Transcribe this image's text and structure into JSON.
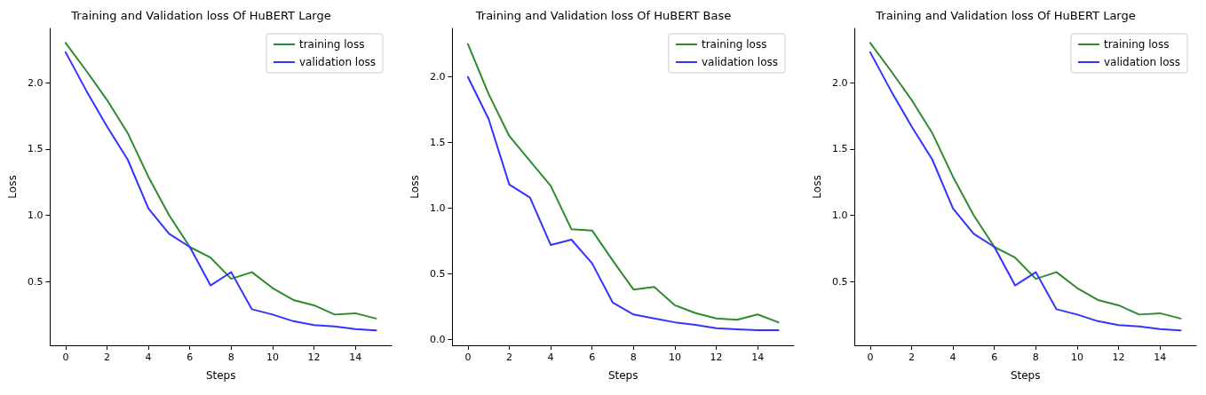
{
  "chart_data": [
    {
      "type": "line",
      "title": "Training and Validation loss Of HuBERT Large",
      "xlabel": "Steps",
      "ylabel": "Loss",
      "x": [
        0,
        1,
        2,
        3,
        4,
        5,
        6,
        7,
        8,
        9,
        10,
        11,
        12,
        13,
        14,
        15
      ],
      "xlim": [
        -0.75,
        15.75
      ],
      "xticks": [
        0,
        2,
        4,
        6,
        8,
        10,
        12,
        14
      ],
      "ylim": [
        0.018,
        2.41
      ],
      "yticks": [
        {
          "value": 0.5,
          "label": "0.5"
        },
        {
          "value": 1,
          "label": "1.0"
        },
        {
          "value": 1.5,
          "label": "1.5"
        },
        {
          "value": 2,
          "label": "2.0"
        }
      ],
      "grid": false,
      "legend": "top right",
      "marker": "none",
      "line_style": "solid",
      "series": [
        {
          "name": "training loss",
          "color": "#2e8b2e",
          "values": [
            2.3,
            2.09,
            1.87,
            1.62,
            1.29,
            1.0,
            0.76,
            0.68,
            0.52,
            0.57,
            0.45,
            0.36,
            0.32,
            0.25,
            0.26,
            0.22
          ]
        },
        {
          "name": "validation loss",
          "color": "#3333ff",
          "values": [
            2.23,
            1.94,
            1.67,
            1.42,
            1.05,
            0.86,
            0.76,
            0.47,
            0.57,
            0.29,
            0.25,
            0.2,
            0.17,
            0.16,
            0.14,
            0.13
          ]
        }
      ]
    },
    {
      "type": "line",
      "title": "Training and Validation loss Of HuBERT Base",
      "xlabel": "Steps",
      "ylabel": "Loss",
      "x": [
        0,
        1,
        2,
        3,
        4,
        5,
        6,
        7,
        8,
        9,
        10,
        11,
        12,
        13,
        14,
        15
      ],
      "xlim": [
        -0.75,
        15.75
      ],
      "xticks": [
        0,
        2,
        4,
        6,
        8,
        10,
        12,
        14
      ],
      "ylim": [
        -0.045,
        2.37
      ],
      "yticks": [
        {
          "value": 0,
          "label": "0.0"
        },
        {
          "value": 0.5,
          "label": "0.5"
        },
        {
          "value": 1,
          "label": "1.0"
        },
        {
          "value": 1.5,
          "label": "1.5"
        },
        {
          "value": 2,
          "label": "2.0"
        }
      ],
      "grid": false,
      "legend": "top right",
      "marker": "none",
      "line_style": "solid",
      "series": [
        {
          "name": "training loss",
          "color": "#2e8b2e",
          "values": [
            2.25,
            1.87,
            1.55,
            1.36,
            1.17,
            0.84,
            0.83,
            0.6,
            0.38,
            0.4,
            0.26,
            0.2,
            0.16,
            0.15,
            0.19,
            0.13
          ]
        },
        {
          "name": "validation loss",
          "color": "#3333ff",
          "values": [
            2.0,
            1.68,
            1.18,
            1.08,
            0.72,
            0.76,
            0.58,
            0.28,
            0.19,
            0.16,
            0.13,
            0.11,
            0.085,
            0.076,
            0.07,
            0.07
          ]
        }
      ]
    },
    {
      "type": "line",
      "title": "Training and Validation loss Of HuBERT Large",
      "xlabel": "Steps",
      "ylabel": "Loss",
      "x": [
        0,
        1,
        2,
        3,
        4,
        5,
        6,
        7,
        8,
        9,
        10,
        11,
        12,
        13,
        14,
        15
      ],
      "xlim": [
        -0.75,
        15.75
      ],
      "xticks": [
        0,
        2,
        4,
        6,
        8,
        10,
        12,
        14
      ],
      "ylim": [
        0.018,
        2.41
      ],
      "yticks": [
        {
          "value": 0.5,
          "label": "0.5"
        },
        {
          "value": 1,
          "label": "1.0"
        },
        {
          "value": 1.5,
          "label": "1.5"
        },
        {
          "value": 2,
          "label": "2.0"
        }
      ],
      "grid": false,
      "legend": "top right",
      "marker": "none",
      "line_style": "solid",
      "series": [
        {
          "name": "training loss",
          "color": "#2e8b2e",
          "values": [
            2.3,
            2.09,
            1.87,
            1.62,
            1.29,
            1.0,
            0.76,
            0.68,
            0.52,
            0.57,
            0.45,
            0.36,
            0.32,
            0.25,
            0.26,
            0.22
          ]
        },
        {
          "name": "validation loss",
          "color": "#3333ff",
          "values": [
            2.23,
            1.94,
            1.67,
            1.42,
            1.05,
            0.86,
            0.76,
            0.47,
            0.57,
            0.29,
            0.25,
            0.2,
            0.17,
            0.16,
            0.14,
            0.13
          ]
        }
      ]
    }
  ]
}
